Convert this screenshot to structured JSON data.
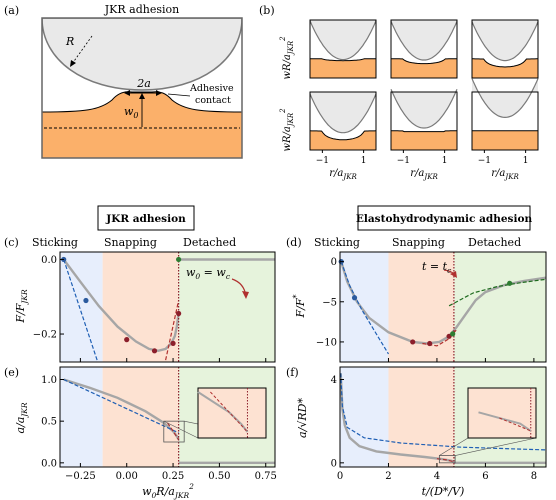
{
  "colors": {
    "stick_bg": "#e7eefc",
    "snap_bg": "#fde2d2",
    "detach_bg": "#e6f3dc",
    "stick_text": "#1f5fb4",
    "snap_text": "#b0302f",
    "detach_text": "#2e7d2e",
    "orange": "#fbb06a",
    "sphere_fill": "#e9e9e9",
    "sphere_stroke": "#7a7a7a",
    "curve_gray": "#a6a6a6",
    "blue_dash": "#1f5fb4",
    "red_dash": "#b0302f",
    "green_dash": "#1e6b1e",
    "dot_blue": "#2b5a9e",
    "dot_red": "#8c1f2b",
    "dot_green": "#2e7d32",
    "vline": "#8c1f2b"
  },
  "panels": {
    "a": {
      "letter": "(a)",
      "title": "JKR adhesion",
      "label_R": "R",
      "label_2a": "2a",
      "label_w0": "w",
      "label_w0_sub": "0",
      "contact_l1": "Adhesive",
      "contact_l2": "contact"
    },
    "b": {
      "letter": "(b)",
      "ylabel_main": "wR/a",
      "ylabel_sup": "2",
      "ylabel_sub": "JKR",
      "xlabel_main": "r/a",
      "xlabel_sub": "JKR",
      "xticks": [
        "−1",
        "1"
      ],
      "shapes": [
        {
          "gap": 0.0,
          "bump": 0.12
        },
        {
          "gap": 0.0,
          "bump": 0.3
        },
        {
          "gap": 0.0,
          "bump": 0.5
        },
        {
          "gap": 0.0,
          "bump": 0.55
        },
        {
          "gap": 0.15,
          "bump": 0.35
        },
        {
          "gap": 0.5,
          "bump": 0.0
        }
      ]
    },
    "headers": {
      "left": "JKR adhesion",
      "right": "Elastohydrodynamic adhesion"
    },
    "regions": {
      "sticking": "Sticking",
      "snapping": "Snapping",
      "detached": "Detached"
    },
    "c": {
      "letter": "(c)",
      "ylabel_main": "F/F",
      "ylabel_sub": "JKR",
      "yticks": [
        "0.0",
        "−0.2"
      ],
      "annotation": "w",
      "annotation_sub": "0",
      "annotation_eq": " = w",
      "annotation_sub2": "c"
    },
    "d": {
      "letter": "(d)",
      "ylabel_main": "F/F",
      "ylabel_sup": "*",
      "yticks": [
        "0",
        "−5",
        "−10"
      ],
      "annotation": "t = t",
      "annotation_sub": "c"
    },
    "e": {
      "letter": "(e)",
      "ylabel_main": "a/a",
      "ylabel_sub": "JKR",
      "yticks": [
        "1.0",
        "0.5",
        "0.0"
      ],
      "xticks": [
        "−0.25",
        "0.00",
        "0.25",
        "0.50",
        "0.75"
      ],
      "xlabel_main": "w",
      "xlabel_sub": "0",
      "xlabel_rest": "R/a",
      "xlabel_sup": "2",
      "xlabel_sub2": "JKR"
    },
    "f": {
      "letter": "(f)",
      "ylabel_main": "a/",
      "ylabel_root": "√RD*",
      "yticks": [
        "4",
        "0"
      ],
      "xticks": [
        "0",
        "2",
        "4",
        "6",
        "8"
      ],
      "xlabel": "t/(D*/V)"
    }
  },
  "chart_data": [
    {
      "type": "line",
      "panel": "c",
      "xlim": [
        -0.36,
        0.8
      ],
      "ylim": [
        -0.275,
        0.02
      ],
      "region_bounds": [
        -0.36,
        -0.13,
        0.28,
        0.8
      ],
      "critical_x": 0.28,
      "series": [
        {
          "name": "",
          "style": "gray",
          "x": [
            -0.34,
            -0.25,
            -0.15,
            -0.05,
            0.05,
            0.12,
            0.17,
            0.21,
            0.24,
            0.26,
            0.27,
            0.28
          ],
          "y": [
            0.0,
            -0.06,
            -0.125,
            -0.18,
            -0.22,
            -0.24,
            -0.245,
            -0.24,
            -0.225,
            -0.205,
            -0.18,
            -0.145
          ]
        },
        {
          "name": "",
          "style": "gray",
          "x": [
            0.28,
            0.8
          ],
          "y": [
            0.0,
            0.0
          ]
        },
        {
          "name": "",
          "style": "blue_dash",
          "x": [
            -0.34,
            -0.16
          ],
          "y": [
            0.0,
            -0.27
          ]
        },
        {
          "name": "",
          "style": "red_dash",
          "x": [
            0.21,
            0.28
          ],
          "y": [
            -0.27,
            -0.11
          ]
        }
      ],
      "points": [
        {
          "x": -0.34,
          "y": 0.0,
          "c": "dot_blue"
        },
        {
          "x": -0.22,
          "y": -0.11,
          "c": "dot_blue"
        },
        {
          "x": -0.0,
          "y": -0.215,
          "c": "dot_red"
        },
        {
          "x": 0.15,
          "y": -0.245,
          "c": "dot_red"
        },
        {
          "x": 0.25,
          "y": -0.225,
          "c": "dot_red"
        },
        {
          "x": 0.28,
          "y": -0.145,
          "c": "dot_red"
        },
        {
          "x": 0.28,
          "y": 0.0,
          "c": "dot_green"
        }
      ]
    },
    {
      "type": "line",
      "panel": "d",
      "xlim": [
        0,
        8.5
      ],
      "ylim": [
        -12.5,
        1.2
      ],
      "region_bounds": [
        0,
        2,
        4.7,
        8.5
      ],
      "critical_x": 4.7,
      "series": [
        {
          "name": "",
          "style": "gray",
          "x": [
            0.05,
            0.3,
            0.7,
            1.2,
            2.0,
            3.0,
            3.6,
            4.1,
            4.5,
            4.8,
            5.2,
            5.6,
            6.0,
            6.8,
            7.6,
            8.5
          ],
          "y": [
            0.0,
            -2.5,
            -5.0,
            -7.0,
            -8.8,
            -10.0,
            -10.2,
            -10.0,
            -9.3,
            -8.2,
            -6.5,
            -4.8,
            -3.8,
            -2.9,
            -2.4,
            -2.0
          ]
        },
        {
          "name": "",
          "style": "blue_dash",
          "x": [
            0.05,
            0.4,
            0.9,
            1.4,
            2.0
          ],
          "y": [
            0.0,
            -3.0,
            -6.0,
            -8.5,
            -11.5
          ]
        },
        {
          "name": "",
          "style": "red_dash",
          "x": [
            3.4,
            4.0,
            4.5,
            4.8
          ],
          "y": [
            -10.2,
            -10.5,
            -9.6,
            -8.5
          ]
        },
        {
          "name": "",
          "style": "green_dash",
          "x": [
            4.5,
            5.5,
            6.5,
            7.5,
            8.5
          ],
          "y": [
            -5.5,
            -3.9,
            -3.1,
            -2.6,
            -2.2
          ]
        }
      ],
      "points": [
        {
          "x": 0.05,
          "y": 0.0,
          "c": "dot_blue"
        },
        {
          "x": 0.6,
          "y": -4.5,
          "c": "dot_blue"
        },
        {
          "x": 3.0,
          "y": -10.0,
          "c": "dot_red"
        },
        {
          "x": 3.7,
          "y": -10.2,
          "c": "dot_red"
        },
        {
          "x": 4.5,
          "y": -9.3,
          "c": "dot_red"
        },
        {
          "x": 4.65,
          "y": -9.0,
          "c": "dot_green"
        },
        {
          "x": 7.0,
          "y": -2.7,
          "c": "dot_green"
        }
      ]
    },
    {
      "type": "line",
      "panel": "e",
      "xlim": [
        -0.36,
        0.8
      ],
      "ylim": [
        -0.05,
        1.15
      ],
      "region_bounds": [
        -0.36,
        -0.13,
        0.28,
        0.8
      ],
      "critical_x": 0.28,
      "xticks": [
        -0.25,
        0.0,
        0.25,
        0.5,
        0.75
      ],
      "series": [
        {
          "name": "",
          "style": "gray",
          "x": [
            -0.34,
            -0.2,
            -0.05,
            0.1,
            0.2,
            0.25,
            0.27,
            0.28
          ],
          "y": [
            1.0,
            0.9,
            0.78,
            0.62,
            0.48,
            0.38,
            0.32,
            0.28
          ]
        },
        {
          "name": "",
          "style": "gray",
          "x": [
            0.28,
            0.8
          ],
          "y": [
            0.0,
            0.0
          ]
        },
        {
          "name": "",
          "style": "blue_dash",
          "x": [
            -0.34,
            0.28
          ],
          "y": [
            1.0,
            0.36
          ]
        },
        {
          "name": "",
          "style": "red_dash",
          "x": [
            0.22,
            0.28
          ],
          "y": [
            0.48,
            0.28
          ]
        }
      ],
      "inset_box": [
        0.2,
        0.25,
        0.31,
        0.5
      ]
    },
    {
      "type": "line",
      "panel": "f",
      "xlim": [
        0,
        8.5
      ],
      "ylim": [
        -0.2,
        4.6
      ],
      "region_bounds": [
        0,
        2,
        4.7,
        8.5
      ],
      "critical_x": 4.7,
      "xticks": [
        0,
        2,
        4,
        6,
        8
      ],
      "series": [
        {
          "name": "",
          "style": "gray",
          "x": [
            0.03,
            0.1,
            0.2,
            0.4,
            0.8,
            1.5,
            2.5,
            3.5,
            4.2,
            4.6,
            4.7
          ],
          "y": [
            4.3,
            2.6,
            1.8,
            1.2,
            0.8,
            0.55,
            0.4,
            0.28,
            0.18,
            0.1,
            0.05
          ]
        },
        {
          "name": "",
          "style": "gray",
          "x": [
            4.7,
            8.5
          ],
          "y": [
            0.0,
            0.0
          ]
        },
        {
          "name": "",
          "style": "blue_dash",
          "x": [
            0.03,
            0.1,
            0.3,
            1.0,
            2.5,
            5.0,
            8.5
          ],
          "y": [
            4.3,
            2.7,
            1.7,
            1.2,
            0.95,
            0.75,
            0.62
          ]
        },
        {
          "name": "",
          "style": "red_dash",
          "x": [
            4.0,
            4.4,
            4.7
          ],
          "y": [
            0.2,
            0.14,
            0.05
          ]
        }
      ],
      "inset_box": [
        4.1,
        0.0,
        4.75,
        0.35
      ]
    }
  ]
}
